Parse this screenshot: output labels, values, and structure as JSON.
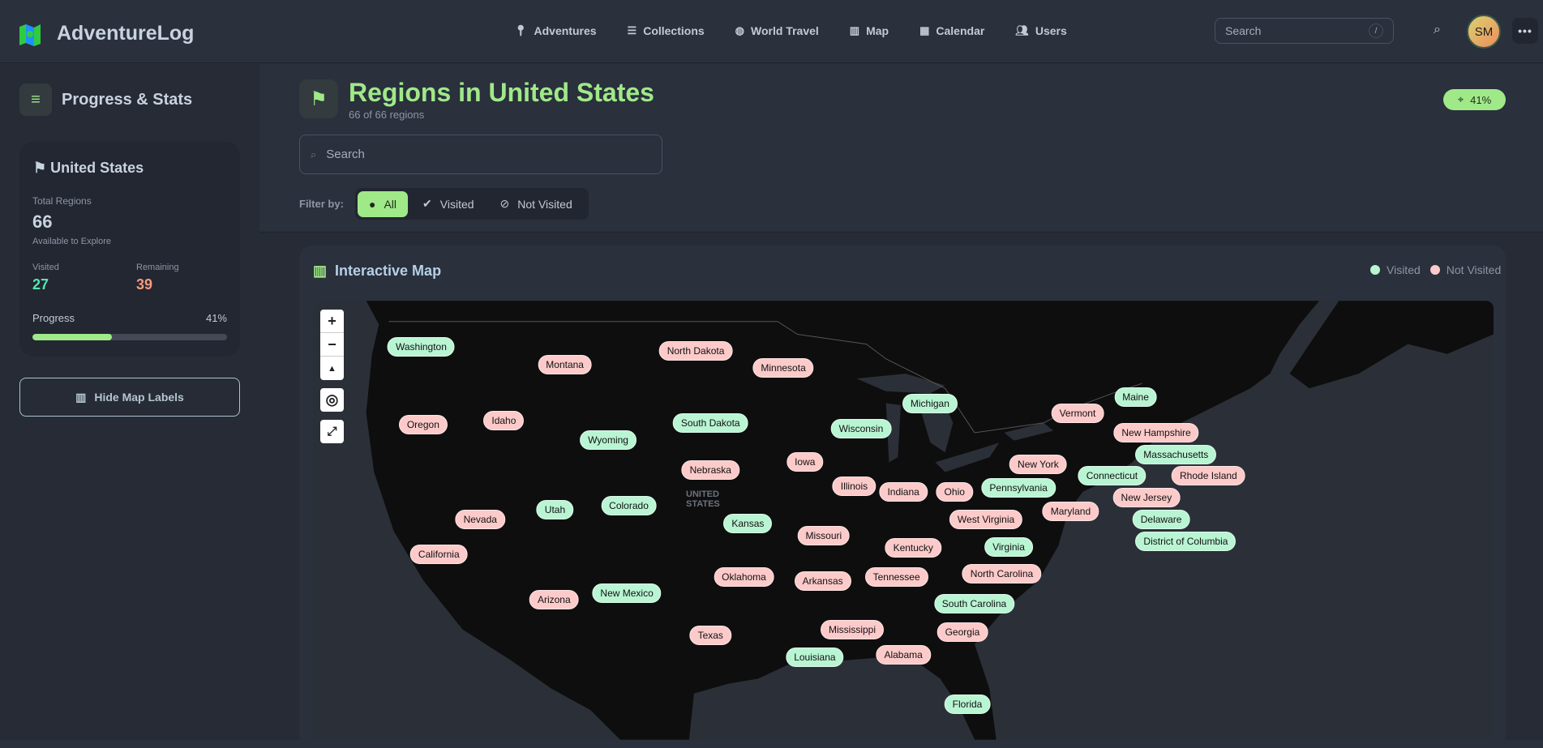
{
  "header": {
    "brand": "AdventureLog",
    "nav": [
      {
        "label": "Adventures",
        "icon": "map-pin-icon"
      },
      {
        "label": "Collections",
        "icon": "list-icon"
      },
      {
        "label": "World Travel",
        "icon": "globe-icon"
      },
      {
        "label": "Map",
        "icon": "map-icon"
      },
      {
        "label": "Calendar",
        "icon": "calendar-icon"
      },
      {
        "label": "Users",
        "icon": "users-icon"
      }
    ],
    "search_placeholder": "Search",
    "search_shortcut": "/",
    "avatar_initials": "SM"
  },
  "sidebar": {
    "title": "Progress & Stats",
    "country": "United States",
    "total_label": "Total Regions",
    "total": "66",
    "total_sub": "Available to Explore",
    "visited_label": "Visited",
    "visited": "27",
    "remaining_label": "Remaining",
    "remaining": "39",
    "progress_label": "Progress",
    "progress_text": "41%",
    "progress": 41,
    "hide_labels_button": "Hide Map Labels"
  },
  "page": {
    "title": "Regions in United States",
    "subtitle": "66 of 66 regions",
    "badge": "41%",
    "search_placeholder": "Search",
    "filter_label": "Filter by:",
    "filters": [
      {
        "label": "All",
        "active": true
      },
      {
        "label": "Visited",
        "active": false
      },
      {
        "label": "Not Visited",
        "active": false
      }
    ]
  },
  "map": {
    "title": "Interactive Map",
    "legend": {
      "visited": "Visited",
      "not_visited": "Not Visited"
    },
    "colors": {
      "visited": "#b9f5d3",
      "not_visited": "#fdcaca",
      "accent": "#a0e989"
    },
    "country_label": "UNITED STATES",
    "regions": [
      {
        "name": "Washington",
        "visited": true
      },
      {
        "name": "Montana",
        "visited": false
      },
      {
        "name": "North Dakota",
        "visited": false
      },
      {
        "name": "Minnesota",
        "visited": false
      },
      {
        "name": "Oregon",
        "visited": false
      },
      {
        "name": "Idaho",
        "visited": false
      },
      {
        "name": "Wyoming",
        "visited": true
      },
      {
        "name": "South Dakota",
        "visited": true
      },
      {
        "name": "Wisconsin",
        "visited": true
      },
      {
        "name": "Michigan",
        "visited": true
      },
      {
        "name": "Vermont",
        "visited": false
      },
      {
        "name": "Maine",
        "visited": true
      },
      {
        "name": "Massachusetts",
        "visited": true
      },
      {
        "name": "New Hampshire",
        "visited": false
      },
      {
        "name": "Connecticut",
        "visited": true
      },
      {
        "name": "Rhode Island",
        "visited": false
      },
      {
        "name": "Pennsylvania",
        "visited": true
      },
      {
        "name": "New York",
        "visited": false
      },
      {
        "name": "New Jersey",
        "visited": false
      },
      {
        "name": "Nebraska",
        "visited": false
      },
      {
        "name": "Iowa",
        "visited": false
      },
      {
        "name": "Illinois",
        "visited": false
      },
      {
        "name": "Indiana",
        "visited": false
      },
      {
        "name": "Ohio",
        "visited": false
      },
      {
        "name": "Nevada",
        "visited": false
      },
      {
        "name": "Utah",
        "visited": true
      },
      {
        "name": "Colorado",
        "visited": true
      },
      {
        "name": "Kansas",
        "visited": true
      },
      {
        "name": "Delaware",
        "visited": true
      },
      {
        "name": "District of Columbia",
        "visited": true
      },
      {
        "name": "Maryland",
        "visited": false
      },
      {
        "name": "West Virginia",
        "visited": false
      },
      {
        "name": "Missouri",
        "visited": false
      },
      {
        "name": "Kentucky",
        "visited": false
      },
      {
        "name": "Virginia",
        "visited": true
      },
      {
        "name": "California",
        "visited": false
      },
      {
        "name": "North Carolina",
        "visited": false
      },
      {
        "name": "Oklahoma",
        "visited": false
      },
      {
        "name": "Arkansas",
        "visited": false
      },
      {
        "name": "Tennessee",
        "visited": false
      },
      {
        "name": "Arizona",
        "visited": false
      },
      {
        "name": "New Mexico",
        "visited": true
      },
      {
        "name": "South Carolina",
        "visited": true
      },
      {
        "name": "Alabama",
        "visited": false
      },
      {
        "name": "Mississippi",
        "visited": false
      },
      {
        "name": "Georgia",
        "visited": false
      },
      {
        "name": "Texas",
        "visited": false
      },
      {
        "name": "Louisiana",
        "visited": true
      },
      {
        "name": "Florida",
        "visited": true
      }
    ]
  }
}
